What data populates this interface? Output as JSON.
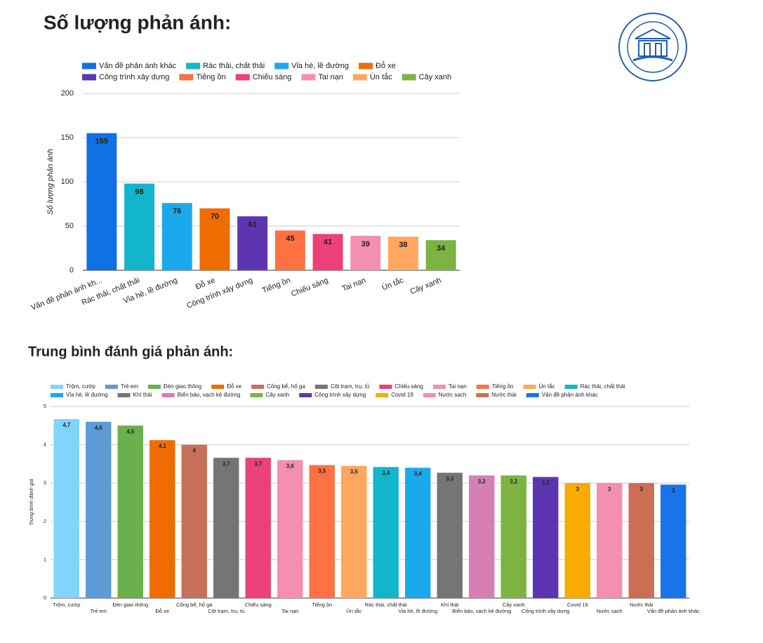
{
  "chart_data": [
    {
      "type": "bar",
      "title": "Số lượng phản ánh:",
      "y_label": "Số lượng phản ánh",
      "categories": [
        "Vấn đề phản ánh khác",
        "Rác thải, chất thải",
        "Vỉa hè, lề đường",
        "Đỗ xe",
        "Công trình xây dựng",
        "Tiếng ồn",
        "Chiếu sáng",
        "Tai nạn",
        "Ùn tắc",
        "Cây xanh"
      ],
      "x_labels": [
        "Vấn đề phản ánh kh...",
        "Rác thải, chất thải",
        "Vỉa hè, lề đường",
        "Đỗ xe",
        "Công trình xây dựng",
        "Tiếng ồn",
        "Chiếu sáng",
        "Tai nạn",
        "Ùn tắc",
        "Cây xanh"
      ],
      "values": [
        155,
        98,
        76,
        70,
        61,
        45,
        41,
        39,
        38,
        34
      ],
      "colors": [
        "#1170e3",
        "#12b5cb",
        "#1aa9ec",
        "#ef6c00",
        "#5e35b1",
        "#ff7043",
        "#ec407a",
        "#f48fb1",
        "#ffa75e",
        "#7cb342"
      ],
      "ylim": [
        0,
        200
      ],
      "yticks": [
        0,
        50,
        100,
        150,
        200
      ],
      "grid": true,
      "legend": "top"
    },
    {
      "type": "bar",
      "title": "Trung bình đánh giá phản ánh:",
      "y_label": "Trung bình đánh giá",
      "categories": [
        "Trộm, cướp",
        "Trẻ em",
        "Đèn giao thông",
        "Đỗ xe",
        "Cống bể, hố ga",
        "Cột trạm, trụ, tủ",
        "Chiếu sáng",
        "Tai nạn",
        "Tiếng ồn",
        "Ùn tắc",
        "Rác thải, chất thải",
        "Vỉa hè, lề đường",
        "Khí thải",
        "Biển báo, vạch kẻ đường",
        "Cây xanh",
        "Công trình xây dựng",
        "Covid 19",
        "Nước sạch",
        "Nước thải",
        "Vấn đề phản ánh khác"
      ],
      "values": [
        4.67,
        4.6,
        4.5,
        4.12,
        4,
        3.66,
        3.66,
        3.6,
        3.47,
        3.45,
        3.42,
        3.4,
        3.27,
        3.2,
        3.2,
        3.16,
        3,
        3,
        3,
        2.96
      ],
      "value_labels": [
        "4,7",
        "4,6",
        "4,5",
        "4,1",
        "4",
        "3,7",
        "3,7",
        "3,6",
        "3,5",
        "3,5",
        "3,4",
        "3,4",
        "3,3",
        "3,2",
        "3,2",
        "3,2",
        "3",
        "3",
        "3",
        "3"
      ],
      "colors": [
        "#81d4fa",
        "#5c9bd6",
        "#6ab04c",
        "#ef6c00",
        "#c8705a",
        "#757575",
        "#ec407a",
        "#f48fb1",
        "#ff7043",
        "#ffa75e",
        "#12b5cb",
        "#1aa9ec",
        "#757575",
        "#d67fb5",
        "#7cb342",
        "#5e35b1",
        "#f9ab00",
        "#f48fb1",
        "#cc6d55",
        "#1a73e8"
      ],
      "ylim": [
        0,
        5
      ],
      "yticks": [
        0,
        1,
        2,
        3,
        4,
        5
      ],
      "grid": true,
      "legend": "top"
    }
  ]
}
